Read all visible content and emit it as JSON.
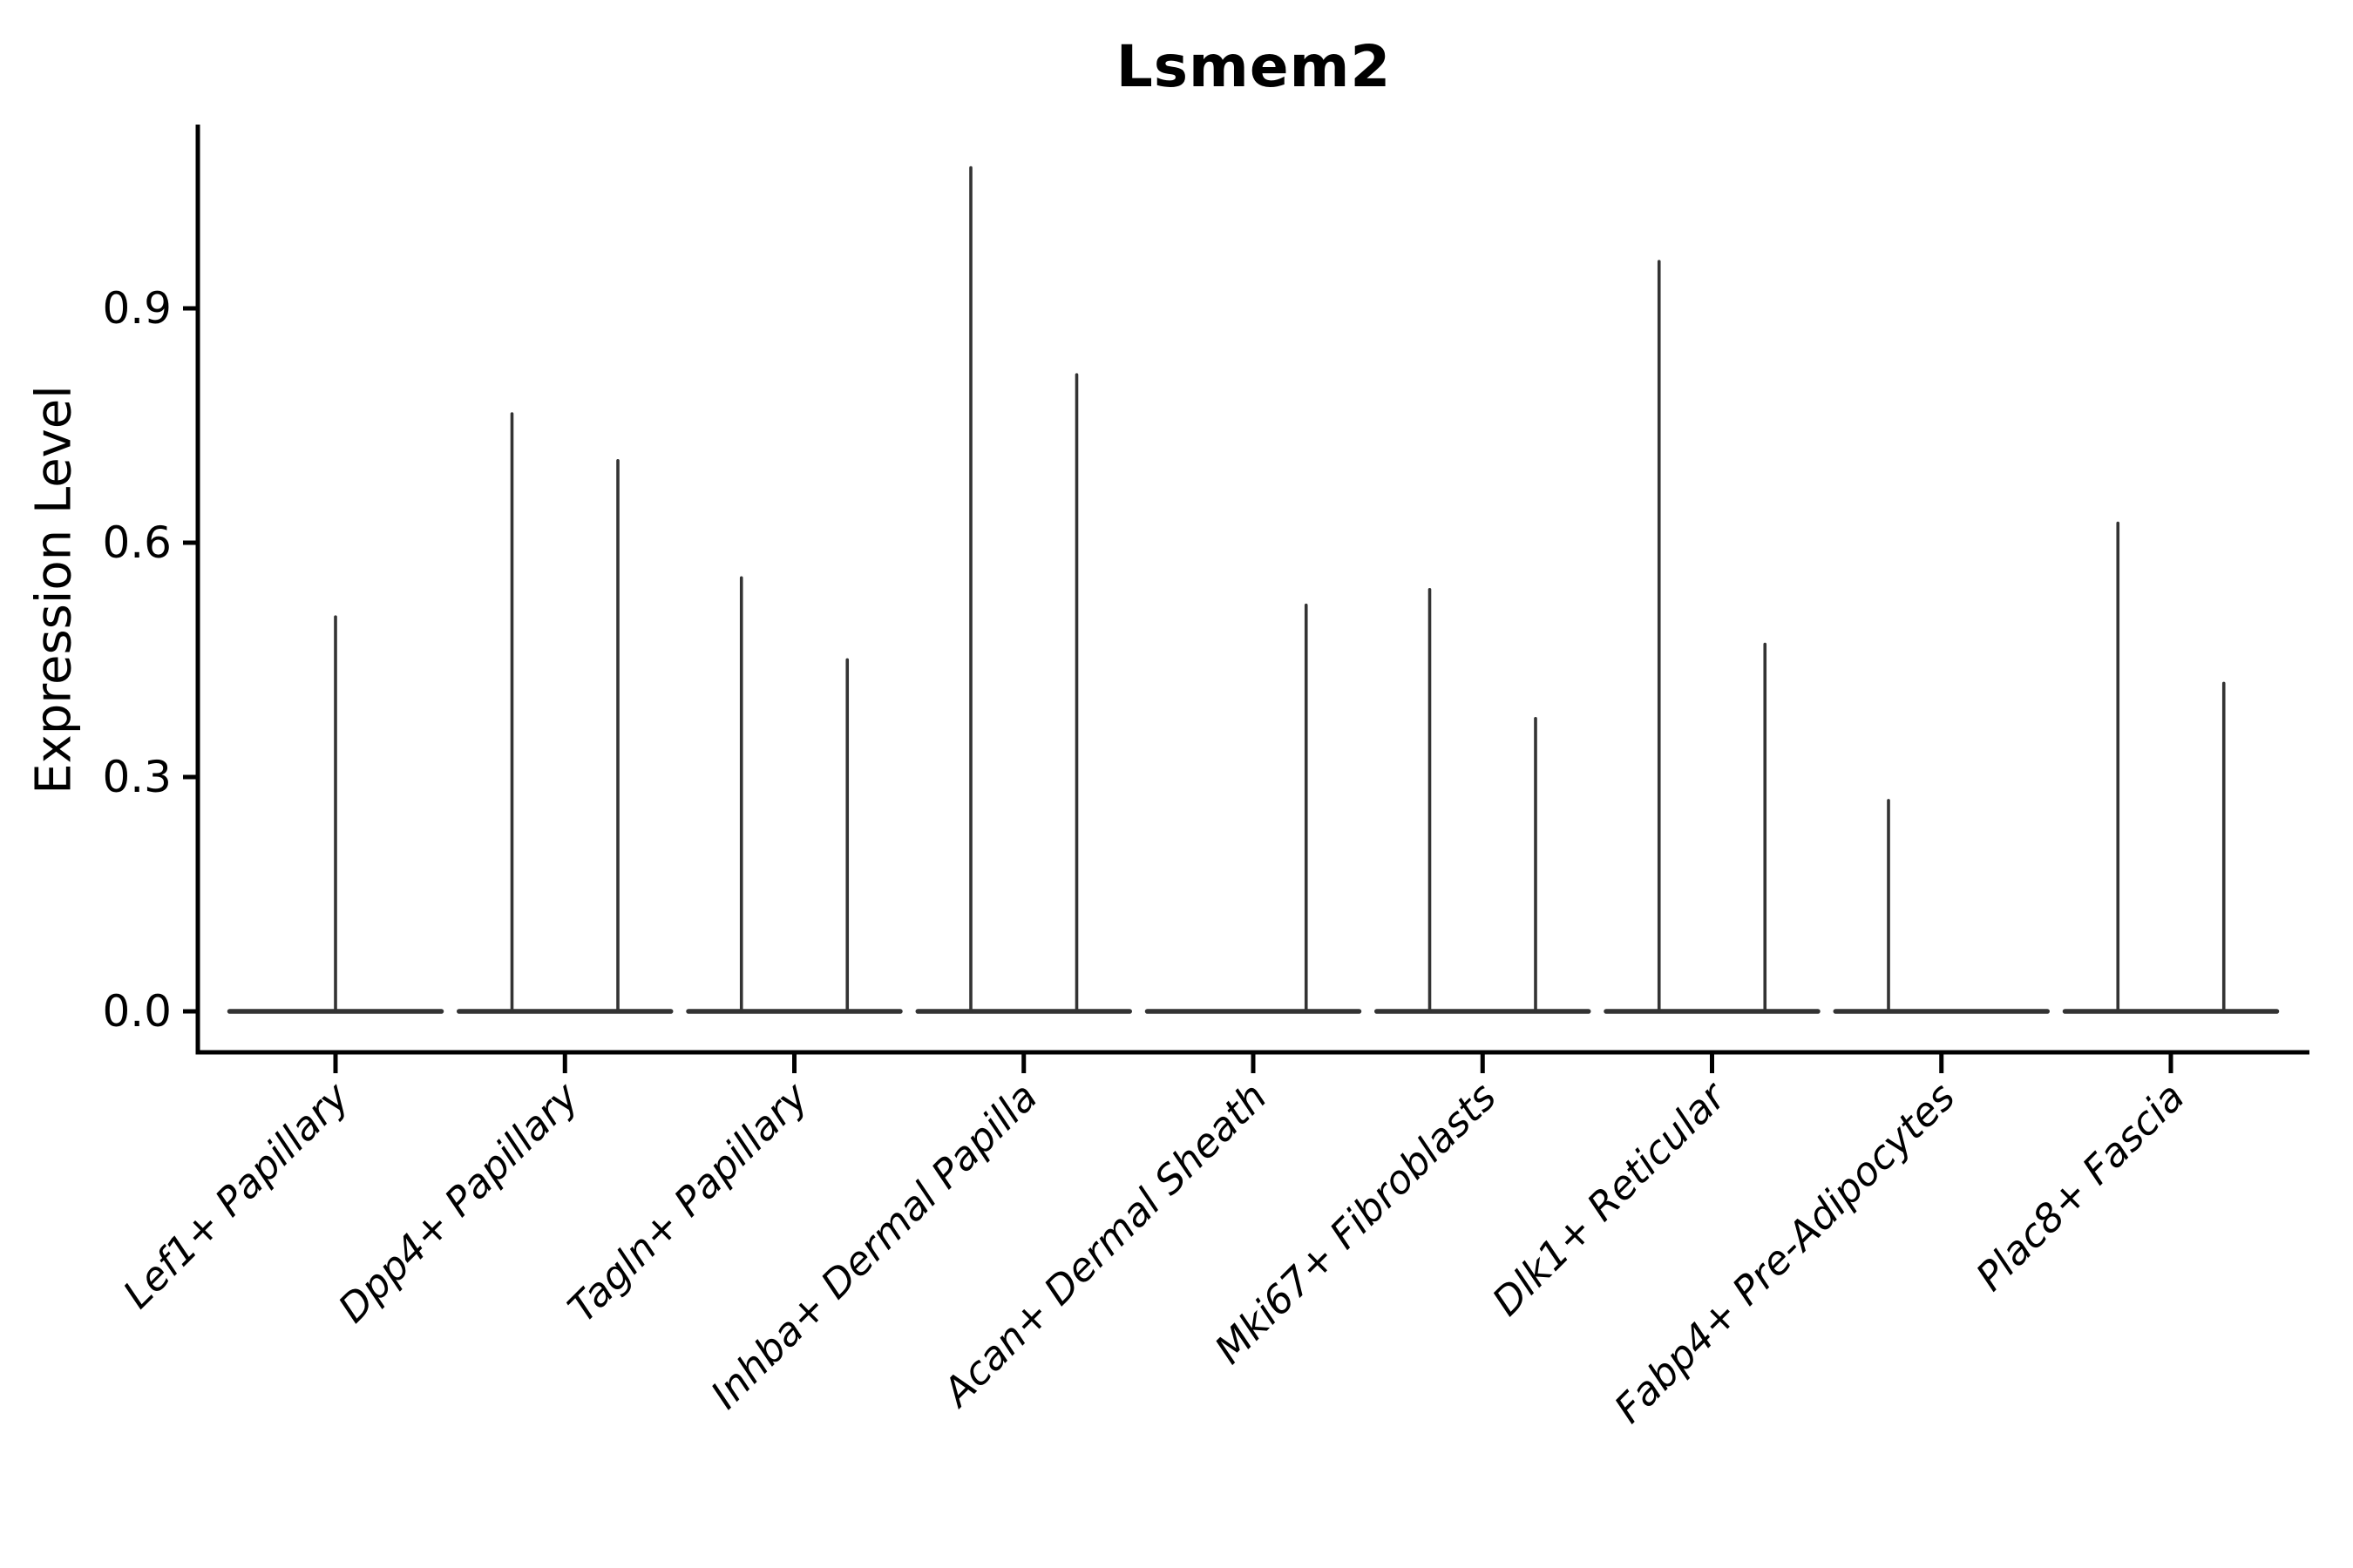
{
  "title": "Lsmem2",
  "axes": {
    "y_label": "Expression Level",
    "y_tick_labels": [
      "0.0",
      "0.3",
      "0.6",
      "0.9"
    ],
    "x_tick_labels": [
      "Lef1+ Papillary",
      "Dpp4+ Papillary",
      "Tagln+ Papillary",
      "Inhba+ Dermal Papilla",
      "Acan+ Dermal Sheath",
      "Mki67+ Fibroblasts",
      "Dlk1+ Reticular",
      "Fabp4+ Pre-Adipocytes",
      "Plac8+ Fascia"
    ]
  },
  "colors": {
    "violin_line": "#333333",
    "axis_line": "#000000",
    "text": "#000000",
    "background": "#ffffff"
  },
  "chart_data": {
    "type": "violin",
    "title": "Lsmem2",
    "xlabel": "",
    "ylabel": "Expression Level",
    "ylim": [
      -0.052,
      1.133
    ],
    "yticks": [
      0.0,
      0.3,
      0.6,
      0.9
    ],
    "grid": false,
    "legend": false,
    "description": "Needle-thin violins collapsed at 0 with a flat wide base per category; some categories show two side-by-side violins (left/right quarter positions), others a single violin.",
    "categories": [
      "Lef1+ Papillary",
      "Dpp4+ Papillary",
      "Tagln+ Papillary",
      "Inhba+ Dermal Papilla",
      "Acan+ Dermal Sheath",
      "Mki67+ Fibroblasts",
      "Dlk1+ Reticular",
      "Fabp4+ Pre-Adipocytes",
      "Plac8+ Fascia"
    ],
    "series": [
      {
        "category": "Lef1+ Papillary",
        "violins": [
          {
            "position": "center",
            "max": 0.505
          }
        ]
      },
      {
        "category": "Dpp4+ Papillary",
        "violins": [
          {
            "position": "left",
            "max": 0.765
          },
          {
            "position": "right",
            "max": 0.705
          }
        ]
      },
      {
        "category": "Tagln+ Papillary",
        "violins": [
          {
            "position": "left",
            "max": 0.555
          },
          {
            "position": "right",
            "max": 0.45
          }
        ]
      },
      {
        "category": "Inhba+ Dermal Papilla",
        "violins": [
          {
            "position": "left",
            "max": 1.08
          },
          {
            "position": "right",
            "max": 0.815
          }
        ]
      },
      {
        "category": "Acan+ Dermal Sheath",
        "violins": [
          {
            "position": "right",
            "max": 0.52
          }
        ]
      },
      {
        "category": "Mki67+ Fibroblasts",
        "violins": [
          {
            "position": "left",
            "max": 0.54
          },
          {
            "position": "right",
            "max": 0.375
          }
        ]
      },
      {
        "category": "Dlk1+ Reticular",
        "violins": [
          {
            "position": "left",
            "max": 0.96
          },
          {
            "position": "right",
            "max": 0.47
          }
        ]
      },
      {
        "category": "Fabp4+ Pre-Adipocytes",
        "violins": [
          {
            "position": "left",
            "max": 0.27
          }
        ]
      },
      {
        "category": "Plac8+ Fascia",
        "violins": [
          {
            "position": "left",
            "max": 0.625
          },
          {
            "position": "right",
            "max": 0.42
          }
        ]
      }
    ]
  }
}
